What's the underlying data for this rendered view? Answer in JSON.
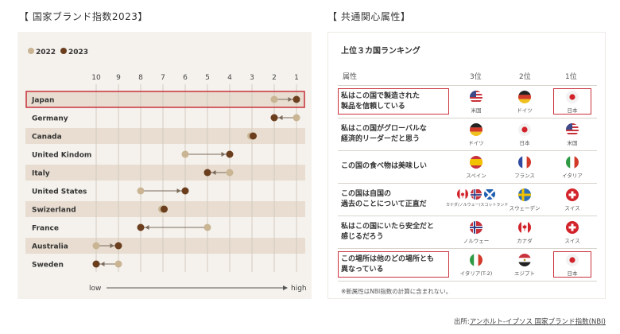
{
  "left_title": "【 国家ブランド指数2023】",
  "right_title": "【 共通関心属性】",
  "chart_data": {
    "type": "dumbbell",
    "legend": [
      "2022",
      "2023"
    ],
    "legend_placement": "top-left",
    "x_ticks": [
      "10",
      "9",
      "8",
      "7",
      "6",
      "5",
      "4",
      "3",
      "2",
      "1"
    ],
    "xlim": [
      10,
      1
    ],
    "xlabel_low": "low",
    "xlabel_high": "high",
    "colors": {
      "2022": "#c9b493",
      "2023": "#6b3e1e",
      "band": "#e8ddd0",
      "highlight": "#c8323c"
    },
    "rows": [
      {
        "country": "Japan",
        "y2022": 2,
        "y2023": 1,
        "highlight": true
      },
      {
        "country": "Germany",
        "y2022": 1,
        "y2023": 2
      },
      {
        "country": "Canada",
        "y2022": 3,
        "y2023": 3
      },
      {
        "country": "United Kindom",
        "y2022": 6,
        "y2023": 4
      },
      {
        "country": "Italy",
        "y2022": 4,
        "y2023": 5
      },
      {
        "country": "United States",
        "y2022": 8,
        "y2023": 6
      },
      {
        "country": "Swizerland",
        "y2022": 7,
        "y2023": 7
      },
      {
        "country": "France",
        "y2022": 5,
        "y2023": 8
      },
      {
        "country": "Australia",
        "y2022": 10,
        "y2023": 9
      },
      {
        "country": "Sweden",
        "y2022": 9,
        "y2023": 10
      }
    ]
  },
  "ranking": {
    "heading": "上位３カ国ランキング",
    "col_attr": "属性",
    "col_3": "3位",
    "col_2": "2位",
    "col_1": "1位",
    "rows": [
      {
        "attr": [
          "私はこの国で製造された",
          "製品を信頼している"
        ],
        "highlight": true,
        "r3": {
          "flags": [
            "us"
          ],
          "name": "米国"
        },
        "r2": {
          "flags": [
            "de"
          ],
          "name": "ドイツ"
        },
        "r1": {
          "flags": [
            "jp"
          ],
          "name": "日本"
        }
      },
      {
        "attr": [
          "私はこの国がグローバルな",
          "経済的リーダーだと思う"
        ],
        "r3": {
          "flags": [
            "de"
          ],
          "name": "ドイツ"
        },
        "r2": {
          "flags": [
            "jp"
          ],
          "name": "日本"
        },
        "r1": {
          "flags": [
            "us"
          ],
          "name": "米国"
        }
      },
      {
        "attr": [
          "この国の食べ物は美味しい"
        ],
        "r3": {
          "flags": [
            "es"
          ],
          "name": "スペイン"
        },
        "r2": {
          "flags": [
            "fr"
          ],
          "name": "フランス"
        },
        "r1": {
          "flags": [
            "it"
          ],
          "name": "イタリア"
        }
      },
      {
        "attr": [
          "この国は自国の",
          "過去のことについて正直だ"
        ],
        "r3": {
          "flags": [
            "ca",
            "no",
            "sco"
          ],
          "name": "カナダ/ノルウェー/スコットランド"
        },
        "r2": {
          "flags": [
            "se"
          ],
          "name": "スウェーデン"
        },
        "r1": {
          "flags": [
            "ch"
          ],
          "name": "スイス"
        }
      },
      {
        "attr": [
          "私はこの国にいたら安全だと",
          "感じるだろう"
        ],
        "r3": {
          "flags": [
            "no"
          ],
          "name": "ノルウェー"
        },
        "r2": {
          "flags": [
            "ca"
          ],
          "name": "カナダ"
        },
        "r1": {
          "flags": [
            "ch"
          ],
          "name": "スイス"
        }
      },
      {
        "attr": [
          "この場所は他のどの場所とも",
          "異なっている"
        ],
        "highlight": true,
        "r3": {
          "flags": [
            "it"
          ],
          "name": "イタリア(T-2)"
        },
        "r2": {
          "flags": [
            "eg"
          ],
          "name": "エジプト"
        },
        "r1": {
          "flags": [
            "jp"
          ],
          "name": "日本"
        }
      }
    ],
    "footnote": "※新属性はNBI指数の計算に含まれない。"
  },
  "source": {
    "prefix": "出所:",
    "link": "アンホルト-イプソス 国家ブランド指数(NBI)"
  }
}
